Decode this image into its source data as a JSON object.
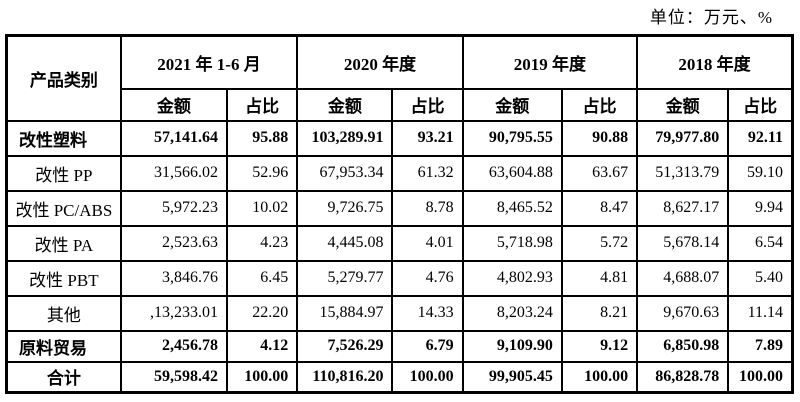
{
  "unit_label": "单位：万元、%",
  "table": {
    "product_header": "产品类别",
    "periods": [
      {
        "label": "2021 年 1-6 月",
        "amount_label": "金额",
        "ratio_label": "占比"
      },
      {
        "label": "2020 年度",
        "amount_label": "金额",
        "ratio_label": "占比"
      },
      {
        "label": "2019 年度",
        "amount_label": "金额",
        "ratio_label": "占比"
      },
      {
        "label": "2018 年度",
        "amount_label": "金额",
        "ratio_label": "占比"
      }
    ],
    "rows": [
      {
        "name": "改性塑料",
        "bold": true,
        "align": "left",
        "values": [
          "57,141.64",
          "95.88",
          "103,289.91",
          "93.21",
          "90,795.55",
          "90.88",
          "79,977.80",
          "92.11"
        ]
      },
      {
        "name": "改性 PP",
        "bold": false,
        "align": "center",
        "values": [
          "31,566.02",
          "52.96",
          "67,953.34",
          "61.32",
          "63,604.88",
          "63.67",
          "51,313.79",
          "59.10"
        ]
      },
      {
        "name": "改性 PC/ABS",
        "bold": false,
        "align": "center",
        "values": [
          "5,972.23",
          "10.02",
          "9,726.75",
          "8.78",
          "8,465.52",
          "8.47",
          "8,627.17",
          "9.94"
        ]
      },
      {
        "name": "改性 PA",
        "bold": false,
        "align": "center",
        "values": [
          "2,523.63",
          "4.23",
          "4,445.08",
          "4.01",
          "5,718.98",
          "5.72",
          "5,678.14",
          "6.54"
        ]
      },
      {
        "name": "改性 PBT",
        "bold": false,
        "align": "center",
        "values": [
          "3,846.76",
          "6.45",
          "5,279.77",
          "4.76",
          "4,802.93",
          "4.81",
          "4,688.07",
          "5.40"
        ]
      },
      {
        "name": "其他",
        "bold": false,
        "align": "center",
        "values": [
          ",13,233.01",
          "22.20",
          "15,884.97",
          "14.33",
          "8,203.24",
          "8.21",
          "9,670.63",
          "11.14"
        ]
      },
      {
        "name": "原料贸易",
        "bold": true,
        "align": "left",
        "values": [
          "2,456.78",
          "4.12",
          "7,526.29",
          "6.79",
          "9,109.90",
          "9.12",
          "6,850.98",
          "7.89"
        ]
      },
      {
        "name": "合计",
        "bold": true,
        "align": "center",
        "values": [
          "59,598.42",
          "100.00",
          "110,816.20",
          "100.00",
          "99,905.45",
          "100.00",
          "86,828.78",
          "100.00"
        ]
      }
    ]
  }
}
